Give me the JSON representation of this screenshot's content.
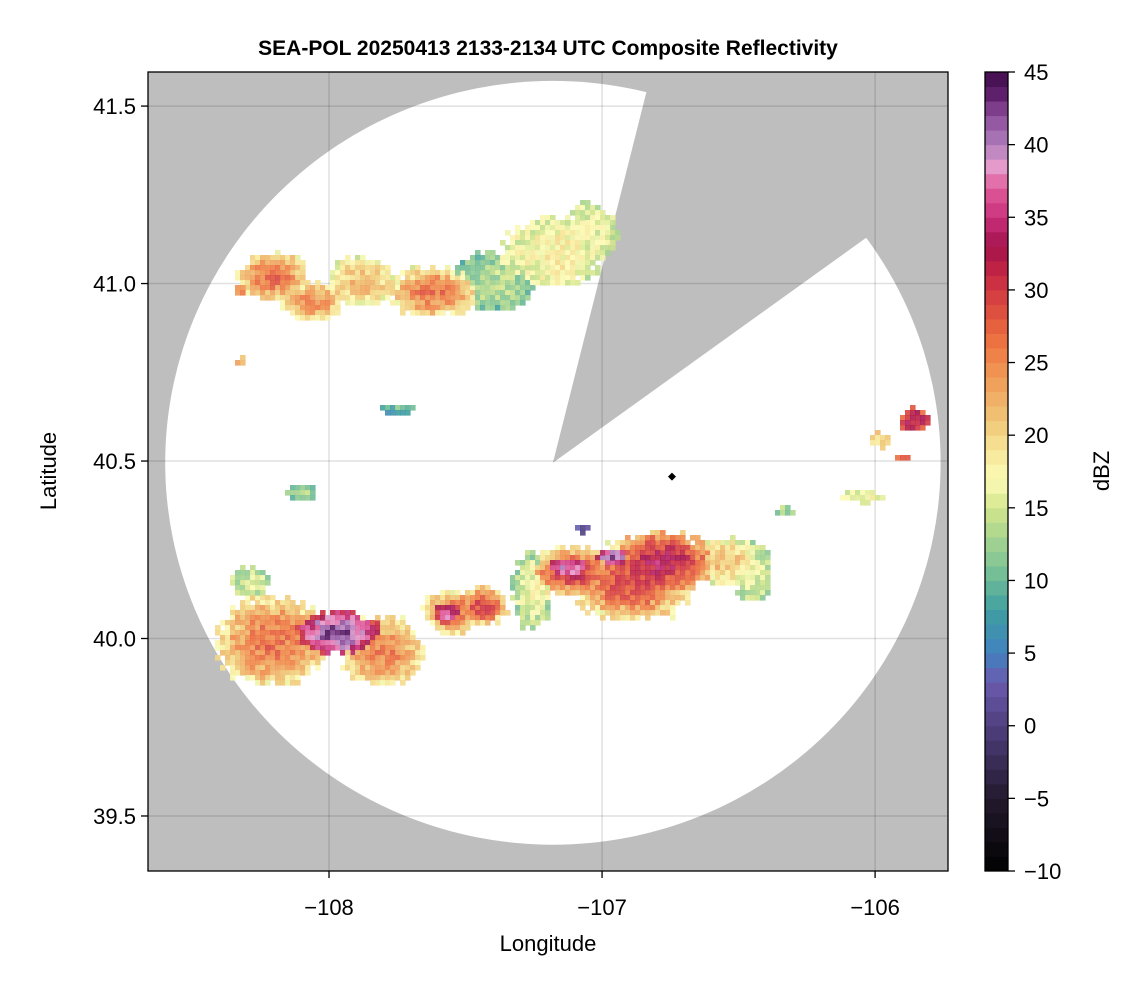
{
  "chart_data": {
    "type": "heatmap",
    "title": "SEA-POL 20250413 2133-2134 UTC Composite Reflectivity",
    "xlabel": "Longitude",
    "ylabel": "Latitude",
    "xlim": [
      -108.663,
      -105.733
    ],
    "ylim": [
      39.345,
      41.596
    ],
    "xticks": [
      -108,
      -107,
      -106
    ],
    "xtick_labels": [
      "−108",
      "−107",
      "−106"
    ],
    "yticks": [
      39.5,
      40.0,
      40.5,
      41.0,
      41.5
    ],
    "ytick_labels": [
      "39.5",
      "40.0",
      "40.5",
      "41.0",
      "41.5"
    ],
    "grid": true,
    "colorbar": {
      "label": "dBZ",
      "range": [
        -10,
        45
      ],
      "ticks": [
        -10,
        -5,
        0,
        5,
        10,
        15,
        20,
        25,
        30,
        35,
        40,
        45
      ],
      "tick_labels": [
        "−10",
        "−5",
        "0",
        "5",
        "10",
        "15",
        "20",
        "25",
        "30",
        "35",
        "40",
        "45"
      ],
      "colormap_stops": [
        [
          -10,
          "#000000"
        ],
        [
          -5,
          "#231a2e"
        ],
        [
          0,
          "#4f3f7e"
        ],
        [
          3,
          "#6a5aad"
        ],
        [
          5,
          "#4182c0"
        ],
        [
          8,
          "#3f9fa0"
        ],
        [
          10,
          "#6bba98"
        ],
        [
          13,
          "#a8d58f"
        ],
        [
          15,
          "#d3e58c"
        ],
        [
          17,
          "#fdfbb6"
        ],
        [
          19,
          "#f6e597"
        ],
        [
          21,
          "#f0c776"
        ],
        [
          23,
          "#f0a862"
        ],
        [
          25,
          "#f08a4b"
        ],
        [
          27,
          "#ea6a3e"
        ],
        [
          29,
          "#d9473f"
        ],
        [
          31,
          "#c72944"
        ],
        [
          33,
          "#a3124c"
        ],
        [
          35,
          "#c9317b"
        ],
        [
          37,
          "#e05b9b"
        ],
        [
          38.5,
          "#e49bcb"
        ],
        [
          40,
          "#b07ebd"
        ],
        [
          42,
          "#8c4c9a"
        ],
        [
          43.5,
          "#5e1f6b"
        ],
        [
          45,
          "#3d0b4a"
        ]
      ]
    },
    "radar": {
      "center_lon": -107.18,
      "center_lat": 40.495,
      "range_deg_lon": 1.42,
      "range_deg_lat": 1.076,
      "blocked_sector_azimuth_deg": [
        14,
        54
      ]
    },
    "site_marker": {
      "lon": -106.744,
      "lat": 40.456
    },
    "no_data_color": "#bebebe",
    "echoes_note_units": "lon, lat, radius_lon_deg, radius_lat_deg, peak_dBZ, edge_dBZ",
    "echoes": [
      [
        -108.216,
        39.997,
        0.2,
        0.127,
        27,
        18
      ],
      [
        -107.978,
        40.025,
        0.15,
        0.062,
        43,
        30
      ],
      [
        -107.813,
        39.969,
        0.15,
        0.099,
        26,
        18
      ],
      [
        -107.557,
        40.082,
        0.11,
        0.062,
        28,
        17
      ],
      [
        -107.575,
        40.076,
        0.044,
        0.028,
        37,
        30
      ],
      [
        -107.447,
        40.096,
        0.092,
        0.056,
        30,
        18
      ],
      [
        -107.264,
        40.138,
        0.073,
        0.113,
        17,
        12
      ],
      [
        -107.117,
        40.194,
        0.15,
        0.07,
        32,
        17
      ],
      [
        -107.136,
        40.208,
        0.073,
        0.023,
        39,
        33
      ],
      [
        -106.897,
        40.166,
        0.22,
        0.113,
        30,
        17
      ],
      [
        -106.788,
        40.223,
        0.18,
        0.085,
        33,
        22
      ],
      [
        -106.971,
        40.237,
        0.055,
        0.023,
        41,
        34
      ],
      [
        -106.568,
        40.223,
        0.128,
        0.07,
        22,
        15
      ],
      [
        -106.458,
        40.194,
        0.073,
        0.085,
        16,
        13
      ],
      [
        -108.297,
        40.166,
        0.073,
        0.042,
        15,
        13
      ],
      [
        -108.106,
        40.42,
        0.055,
        0.023,
        13,
        11
      ],
      [
        -107.758,
        40.654,
        0.066,
        0.014,
        10,
        8
      ],
      [
        -107.081,
        40.315,
        0.03,
        0.011,
        2,
        1
      ],
      [
        -108.216,
        41.025,
        0.128,
        0.07,
        27,
        18
      ],
      [
        -108.07,
        40.955,
        0.11,
        0.056,
        25,
        18
      ],
      [
        -107.886,
        41.011,
        0.128,
        0.07,
        22,
        16
      ],
      [
        -107.63,
        40.983,
        0.165,
        0.07,
        27,
        17
      ],
      [
        -107.41,
        41.011,
        0.15,
        0.085,
        14,
        10
      ],
      [
        -107.19,
        41.096,
        0.18,
        0.099,
        18,
        15
      ],
      [
        -107.044,
        41.152,
        0.092,
        0.085,
        16,
        15
      ],
      [
        -108.337,
        40.989,
        0.026,
        0.017,
        26,
        24
      ],
      [
        -108.333,
        40.786,
        0.026,
        0.014,
        24,
        22
      ],
      [
        -105.864,
        40.623,
        0.055,
        0.034,
        34,
        27
      ],
      [
        -106.0,
        40.566,
        0.037,
        0.023,
        21,
        19
      ],
      [
        -105.908,
        40.518,
        0.03,
        0.011,
        27,
        24
      ],
      [
        -106.055,
        40.406,
        0.092,
        0.017,
        17,
        15
      ],
      [
        -106.341,
        40.363,
        0.03,
        0.017,
        13,
        12
      ]
    ]
  }
}
